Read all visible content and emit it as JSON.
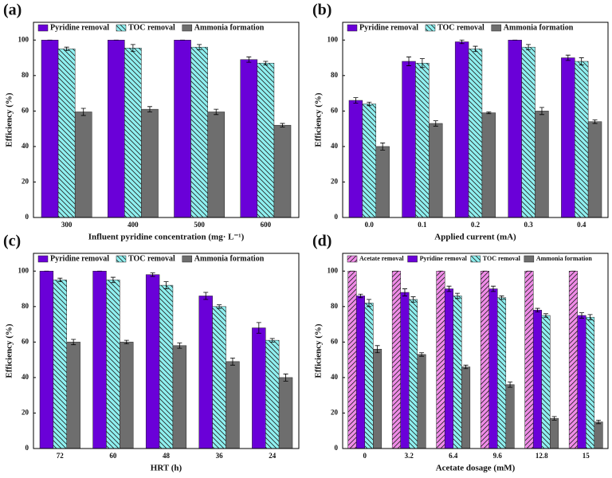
{
  "chart_data": [
    {
      "type": "bar",
      "panel": "(a)",
      "x_label": "Influent pyridine concentration (mg· L⁻¹)",
      "y_label": "Efficiency (%)",
      "categories": [
        "300",
        "400",
        "500",
        "600"
      ],
      "ylim": [
        0,
        110
      ],
      "yticks": [
        0,
        20,
        40,
        60,
        80,
        100
      ],
      "grid": false,
      "legend": "top",
      "series": [
        {
          "name": "Pyridine removal",
          "color": "#6a00d8",
          "hatch": "",
          "values": [
            100,
            100,
            100,
            89
          ],
          "errors": [
            0,
            0,
            0,
            1.5
          ]
        },
        {
          "name": "TOC removal",
          "color": "#8ff0f0",
          "hatch": "\\",
          "values": [
            95,
            95.5,
            96,
            87
          ],
          "errors": [
            1,
            2,
            1.5,
            1
          ]
        },
        {
          "name": "Ammonia formation",
          "color": "#6e6e6e",
          "hatch": "",
          "values": [
            59.5,
            61,
            59.5,
            52
          ],
          "errors": [
            2,
            1.5,
            1.5,
            1
          ]
        }
      ]
    },
    {
      "type": "bar",
      "panel": "(b)",
      "x_label": "Applied current (mA)",
      "y_label": "Efficiency (%)",
      "categories": [
        "0.0",
        "0.1",
        "0.2",
        "0.3",
        "0.4"
      ],
      "ylim": [
        0,
        110
      ],
      "yticks": [
        0,
        20,
        40,
        60,
        80,
        100
      ],
      "grid": false,
      "legend": "top",
      "series": [
        {
          "name": "Pyridine removal",
          "color": "#6a00d8",
          "hatch": "",
          "values": [
            66,
            88,
            99,
            100,
            90
          ],
          "errors": [
            1.5,
            2.5,
            1,
            0,
            1.5
          ]
        },
        {
          "name": "TOC removal",
          "color": "#8ff0f0",
          "hatch": "\\",
          "values": [
            64,
            87,
            95,
            96,
            88
          ],
          "errors": [
            1,
            2.5,
            1.5,
            1.5,
            2
          ]
        },
        {
          "name": "Ammonia formation",
          "color": "#6e6e6e",
          "hatch": "",
          "values": [
            40,
            53,
            59,
            60,
            54
          ],
          "errors": [
            2,
            1.5,
            0.5,
            2,
            1
          ]
        }
      ]
    },
    {
      "type": "bar",
      "panel": "(c)",
      "x_label": "HRT (h)",
      "y_label": "Efficiency (%)",
      "categories": [
        "72",
        "60",
        "48",
        "36",
        "24"
      ],
      "ylim": [
        0,
        110
      ],
      "yticks": [
        0,
        20,
        40,
        60,
        80,
        100
      ],
      "grid": false,
      "legend": "top",
      "series": [
        {
          "name": "Pyridine removal",
          "color": "#6a00d8",
          "hatch": "",
          "values": [
            100,
            100,
            98,
            86,
            68
          ],
          "errors": [
            0,
            0,
            1,
            2,
            3
          ]
        },
        {
          "name": "TOC removal",
          "color": "#8ff0f0",
          "hatch": "\\",
          "values": [
            95,
            95,
            92,
            80,
            61
          ],
          "errors": [
            1,
            1.5,
            2,
            1,
            1
          ]
        },
        {
          "name": "Ammonia formation",
          "color": "#6e6e6e",
          "hatch": "",
          "values": [
            60,
            60,
            58,
            49,
            40
          ],
          "errors": [
            1.5,
            1,
            1.5,
            2,
            2
          ]
        }
      ]
    },
    {
      "type": "bar",
      "panel": "(d)",
      "x_label": "Acetate dosage (mM)",
      "y_label": "Efficiency (%)",
      "categories": [
        "0",
        "3.2",
        "6.4",
        "9.6",
        "12.8",
        "15"
      ],
      "ylim": [
        0,
        110
      ],
      "yticks": [
        0,
        20,
        40,
        60,
        80,
        100
      ],
      "grid": false,
      "legend": "top",
      "series": [
        {
          "name": "Acetate removal",
          "color": "#f08ce8",
          "hatch": "/",
          "values": [
            100,
            100,
            100,
            100,
            100,
            100
          ],
          "errors": [
            0,
            0,
            0,
            0,
            0,
            0
          ]
        },
        {
          "name": "Pyridine removal",
          "color": "#6a00d8",
          "hatch": "",
          "values": [
            86,
            88,
            90,
            90,
            78,
            75
          ],
          "errors": [
            1,
            2,
            1.5,
            1.5,
            1,
            1.5
          ]
        },
        {
          "name": "TOC removal",
          "color": "#8ff0f0",
          "hatch": "\\",
          "values": [
            82,
            84,
            86,
            85,
            75,
            74
          ],
          "errors": [
            2,
            1.5,
            1.5,
            1,
            1,
            1.5
          ]
        },
        {
          "name": "Ammonia formation",
          "color": "#6e6e6e",
          "hatch": "",
          "values": [
            56,
            53,
            46,
            36,
            17,
            15
          ],
          "errors": [
            2,
            1,
            1,
            1.5,
            1,
            1
          ]
        }
      ]
    }
  ]
}
